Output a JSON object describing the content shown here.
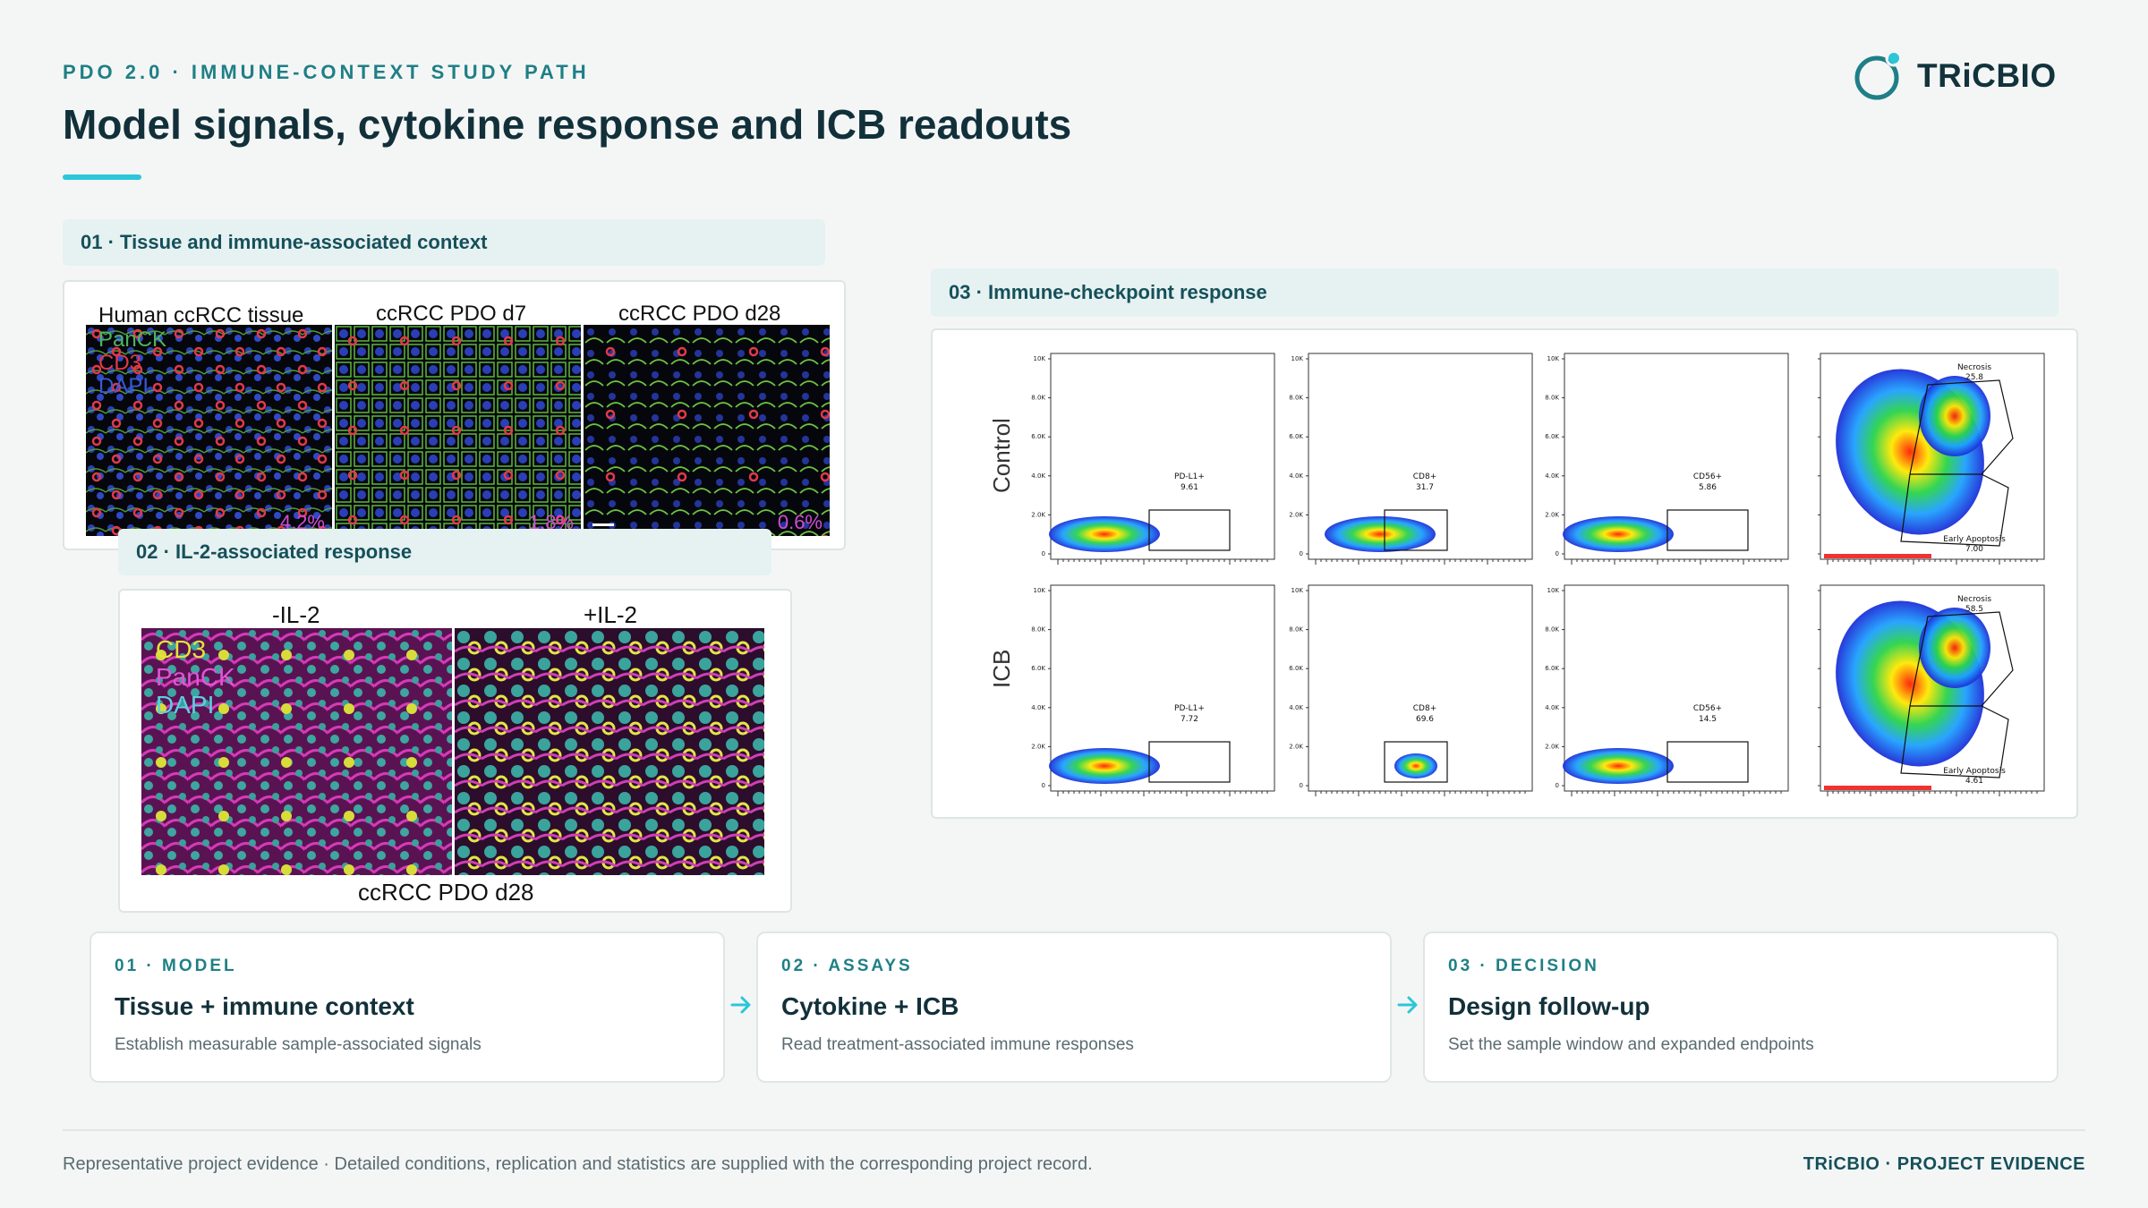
{
  "header": {
    "eyebrow": "PDO 2.0 · IMMUNE-CONTEXT STUDY PATH",
    "title": "Model signals, cytokine response and ICB readouts",
    "logo_text": "TRiCBIO",
    "accent_color": "#2cc6da",
    "brand_color": "#1f7f86"
  },
  "sections": {
    "tissue": {
      "heading": "01 · Tissue and immune-associated context",
      "columns": [
        "Human ccRCC tissue",
        "ccRCC PDO d7",
        "ccRCC PDO d28"
      ],
      "legend": [
        "PanCK",
        "CD3",
        "DAPI"
      ],
      "percentages": [
        "4.2%",
        "1.8%",
        "0.6%"
      ]
    },
    "il2": {
      "heading": "02 · IL-2-associated response",
      "columns": [
        "-IL-2",
        "+IL-2"
      ],
      "legend": [
        "CD3",
        "PanCK",
        "DAPI"
      ],
      "caption": "ccRCC PDO d28"
    },
    "icb": {
      "heading": "03 · Immune-checkpoint response",
      "rows": [
        "Control",
        "ICB"
      ],
      "y_ticks": [
        "10K",
        "8.0K",
        "6.0K",
        "4.0K",
        "2.0K",
        "0"
      ],
      "gates": {
        "control": [
          {
            "name": "PD-L1+",
            "value": "9.61"
          },
          {
            "name": "CD8+",
            "value": "31.7"
          },
          {
            "name": "CD56+",
            "value": "5.86"
          },
          {
            "name": "Necrosis",
            "value": "25.8"
          },
          {
            "name": "Early Apoptosis",
            "value": "7.00"
          }
        ],
        "icb": [
          {
            "name": "PD-L1+",
            "value": "7.72"
          },
          {
            "name": "CD8+",
            "value": "69.6"
          },
          {
            "name": "CD56+",
            "value": "14.5"
          },
          {
            "name": "Necrosis",
            "value": "58.5"
          },
          {
            "name": "Early Apoptosis",
            "value": "4.61"
          }
        ]
      }
    }
  },
  "flow": [
    {
      "step": "01 · MODEL",
      "title": "Tissue + immune context",
      "desc": "Establish measurable sample-associated signals"
    },
    {
      "step": "02 · ASSAYS",
      "title": "Cytokine + ICB",
      "desc": "Read treatment-associated immune responses"
    },
    {
      "step": "03 · DECISION",
      "title": "Design follow-up",
      "desc": "Set the sample window and expanded endpoints"
    }
  ],
  "footer": {
    "note": "Representative project evidence · Detailed conditions, replication and statistics are supplied with the corresponding project record.",
    "brand": "TRiCBIO · PROJECT EVIDENCE"
  }
}
